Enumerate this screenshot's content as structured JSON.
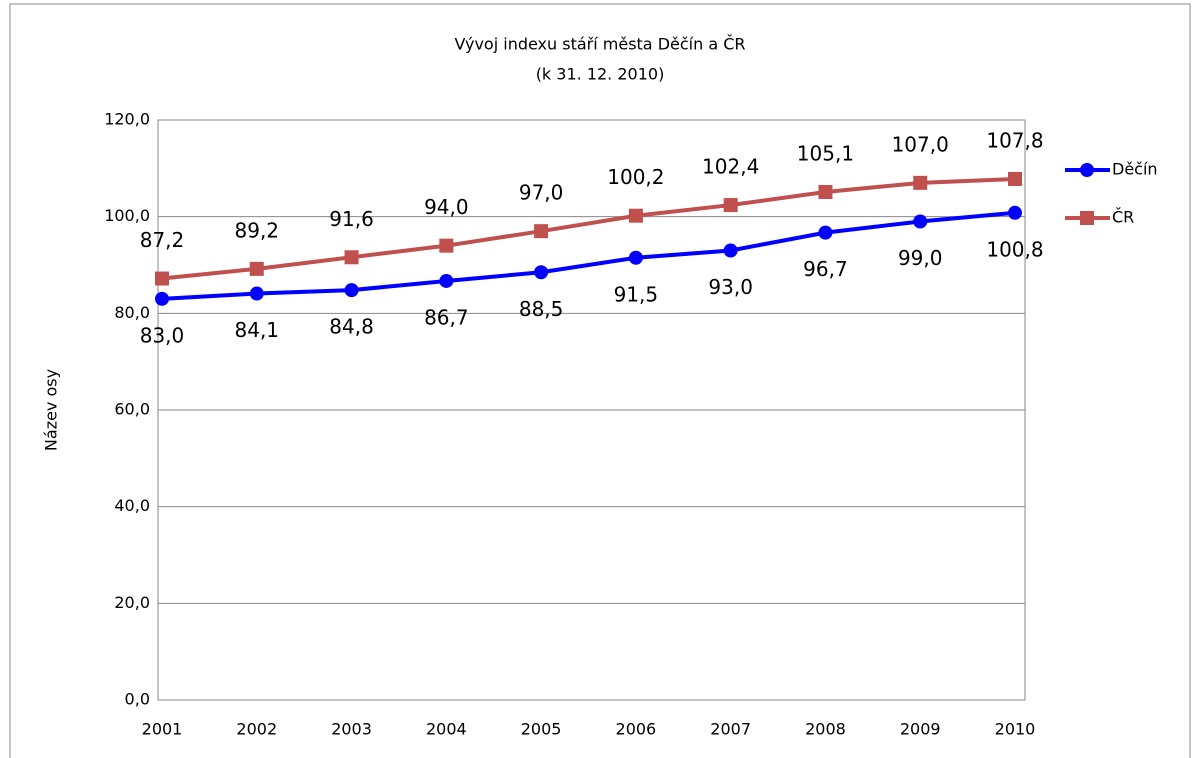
{
  "chart_data": {
    "type": "line",
    "title": "Vývoj indexu stáří města Děčín a ČR",
    "subtitle": "(k 31. 12. 2010)",
    "y_label": "Název osy",
    "categories": [
      "2001",
      "2002",
      "2003",
      "2004",
      "2005",
      "2006",
      "2007",
      "2008",
      "2009",
      "2010"
    ],
    "series": [
      {
        "name": "Děčín",
        "color": "#0000ff",
        "label_color": "#2c4d75",
        "marker": "circle",
        "values": [
          83.0,
          84.1,
          84.8,
          86.7,
          88.5,
          91.5,
          93.0,
          96.7,
          99.0,
          100.8
        ],
        "value_labels": [
          "83,0",
          "84,1",
          "84,8",
          "86,7",
          "88,5",
          "91,5",
          "93,0",
          "96,7",
          "99,0",
          "100,8"
        ]
      },
      {
        "name": "ČR",
        "color": "#c0504d",
        "label_color": "#c0504d",
        "marker": "square",
        "values": [
          87.2,
          89.2,
          91.6,
          94.0,
          97.0,
          100.2,
          102.4,
          105.1,
          107.0,
          107.8
        ],
        "value_labels": [
          "87,2",
          "89,2",
          "91,6",
          "94,0",
          "97,0",
          "100,2",
          "102,4",
          "105,1",
          "107,0",
          "107,8"
        ]
      }
    ],
    "ylim": [
      0,
      120
    ],
    "yticks": [
      {
        "value": 0,
        "label": "0,0"
      },
      {
        "value": 20,
        "label": "20,0"
      },
      {
        "value": 40,
        "label": "40,0"
      },
      {
        "value": 60,
        "label": "60,0"
      },
      {
        "value": 80,
        "label": "80,0"
      },
      {
        "value": 100,
        "label": "100,0"
      },
      {
        "value": 120,
        "label": "120,0"
      }
    ],
    "grid": true,
    "legend": "right"
  }
}
